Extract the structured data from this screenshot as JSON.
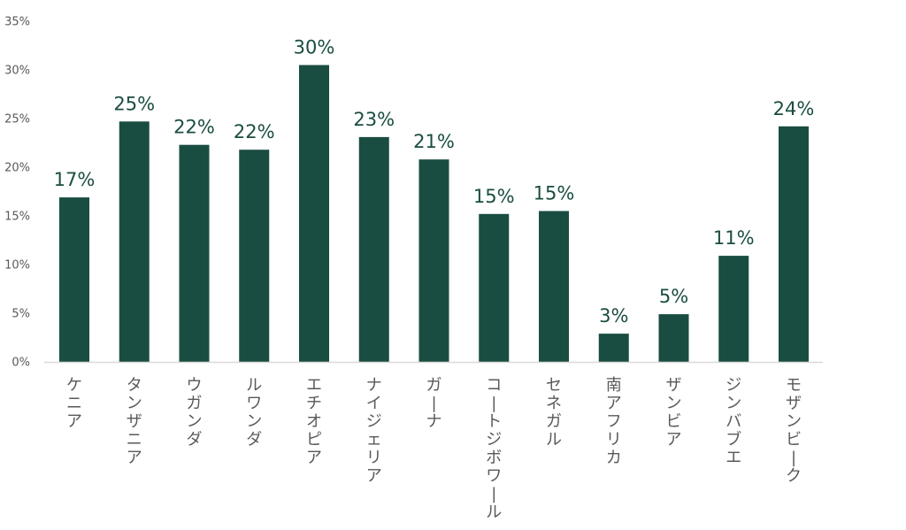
{
  "chart_data": {
    "type": "bar",
    "title": "",
    "xlabel": "",
    "ylabel": "",
    "categories": [
      "ケニア",
      "タンザニア",
      "ウガンダ",
      "ルワンダ",
      "エチオピア",
      "ナイジェリア",
      "ガーナ",
      "コートジボワール",
      "セネガル",
      "南アフリカ",
      "ザンビア",
      "ジンバブエ",
      "モザンビーク"
    ],
    "values": [
      17,
      25,
      22,
      22,
      30,
      23,
      21,
      15,
      15,
      3,
      5,
      11,
      24
    ],
    "bar_heights": [
      16.9,
      24.7,
      22.3,
      21.8,
      30.5,
      23.1,
      20.8,
      15.2,
      15.5,
      2.9,
      4.9,
      10.9,
      24.2
    ],
    "data_labels": [
      "17%",
      "25%",
      "22%",
      "22%",
      "30%",
      "23%",
      "21%",
      "15%",
      "15%",
      "3%",
      "5%",
      "11%",
      "24%"
    ],
    "yticks": [
      "0%",
      "5%",
      "10%",
      "15%",
      "20%",
      "25%",
      "30%",
      "35%"
    ],
    "ylim": [
      0,
      35
    ],
    "grid": false,
    "legend": "none",
    "bar_color": "#1a4d41",
    "axis_color": "#d9d9d9"
  }
}
